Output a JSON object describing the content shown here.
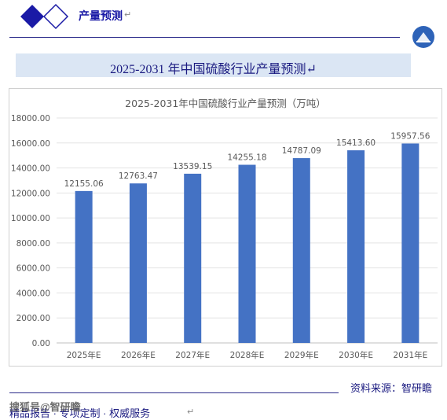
{
  "header": {
    "title": "产量预测",
    "mark": "↵"
  },
  "banner": {
    "text": "2025-2031 年中国硫酸行业产量预测↵"
  },
  "footer": {
    "source": "资料来源：智研瞻",
    "watermark": "搜狐号@智研瞻",
    "tagline": "精品报告 · 专项定制 · 权威服务",
    "mark": "↵"
  },
  "colors": {
    "bar": "#4472c4",
    "brand": "#1a1aa6"
  },
  "chart_data": {
    "type": "bar",
    "title": "2025-2031年中国硫酸行业产量预测（万吨）",
    "xlabel": "",
    "ylabel": "",
    "categories": [
      "2025年E",
      "2026年E",
      "2027年E",
      "2028年E",
      "2029年E",
      "2030年E",
      "2031年E"
    ],
    "values": [
      12155.06,
      12763.47,
      13539.15,
      14255.18,
      14787.09,
      15413.6,
      15957.56
    ],
    "value_labels": [
      "12155.06",
      "12763.47",
      "13539.15",
      "14255.18",
      "14787.09",
      "15413.60",
      "15957.56"
    ],
    "ylim": [
      0,
      18000
    ],
    "yticks": [
      "0.00",
      "2000.00",
      "4000.00",
      "6000.00",
      "8000.00",
      "10000.00",
      "12000.00",
      "14000.00",
      "16000.00",
      "18000.00"
    ],
    "grid": true,
    "legend": "none"
  }
}
